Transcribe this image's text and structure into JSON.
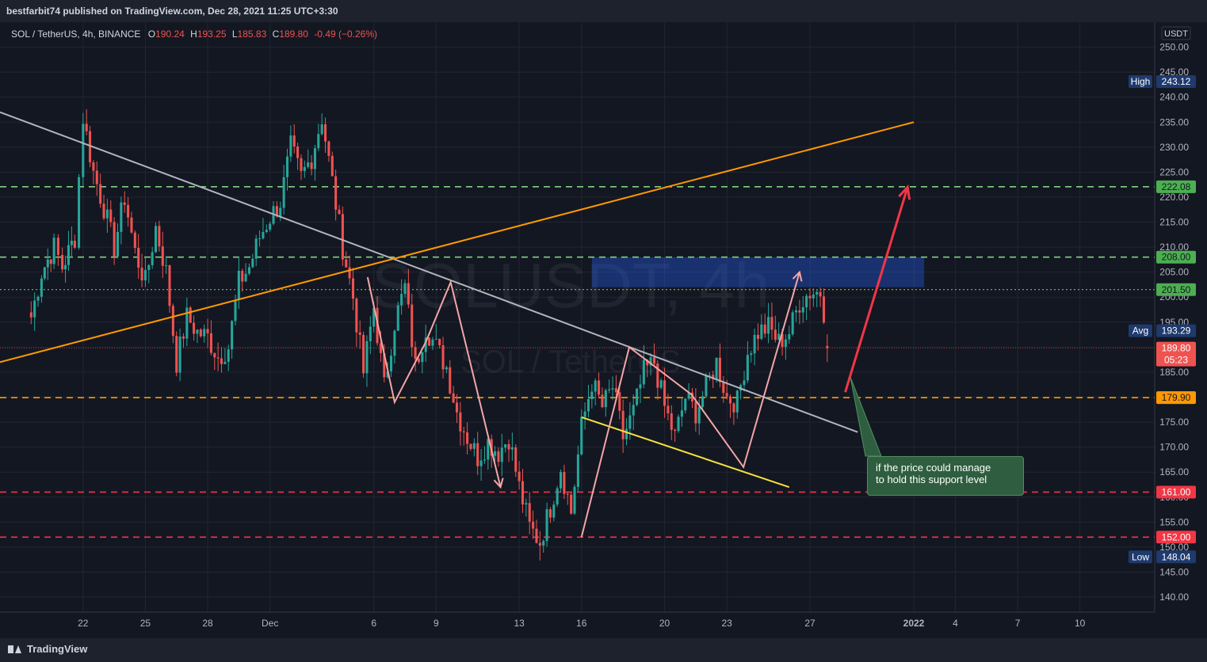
{
  "publisher": "bestfarbit74 published on TradingView.com, Dec 28, 2021 11:25 UTC+3:30",
  "brand": "TradingView",
  "legend": {
    "symbol": "SOL / TetherUS, 4h, BINANCE",
    "o_label": "O",
    "o": "190.24",
    "h_label": "H",
    "h": "193.25",
    "l_label": "L",
    "l": "185.83",
    "c_label": "C",
    "c": "189.80",
    "change": "-0.49 (−0.26%)"
  },
  "watermark": {
    "line1": "SOLUSDT, 4h",
    "line2": "SOL / TetherUS"
  },
  "currency": "USDT",
  "colors": {
    "background": "#131722",
    "up": "#26a69a",
    "down": "#ef5350",
    "grid": "#222631",
    "trendline_white": "#b2b5be",
    "trendline_orange": "#ff9800",
    "trendline_yellow": "#f7e23c",
    "zigzag_pink": "#f4a6a6",
    "arrow_red": "#f23645",
    "zone_blue": "#2962ff",
    "level_green": "#7fd37f",
    "level_orange": "#ff9800",
    "level_red": "#f23645",
    "note_bg": "#2e5e3f"
  },
  "annotation": {
    "line1": "if the price could manage",
    "line2": "to hold this support level"
  },
  "chart_data": {
    "type": "candlestick",
    "symbol": "SOL / TetherUS",
    "interval": "4h",
    "exchange": "BINANCE",
    "ylim": [
      137,
      255
    ],
    "y_ticks": [
      140,
      145,
      150,
      155,
      160,
      165,
      170,
      175,
      180,
      185,
      190,
      195,
      200,
      205,
      210,
      215,
      220,
      225,
      230,
      235,
      240,
      245,
      250
    ],
    "y_tick_labels": [
      "140.00",
      "145.00",
      "150.00",
      "155.00",
      "160.00",
      "165.00",
      "170.00",
      "175.00",
      "180.00",
      "185.00",
      "190.00",
      "195.00",
      "200.00",
      "205.00",
      "210.00",
      "215.00",
      "220.00",
      "225.00",
      "230.00",
      "235.00",
      "240.00",
      "245.00",
      "250.00"
    ],
    "x_ticks": [
      {
        "label": "22",
        "x": 22
      },
      {
        "label": "25",
        "x": 25
      },
      {
        "label": "28",
        "x": 28
      },
      {
        "label": "Dec",
        "x": 31
      },
      {
        "label": "6",
        "x": 36
      },
      {
        "label": "9",
        "x": 39
      },
      {
        "label": "13",
        "x": 43
      },
      {
        "label": "16",
        "x": 46
      },
      {
        "label": "20",
        "x": 50
      },
      {
        "label": "23",
        "x": 53
      },
      {
        "label": "27",
        "x": 57
      },
      {
        "label": "2022",
        "x": 62
      },
      {
        "label": "4",
        "x": 64
      },
      {
        "label": "7",
        "x": 67
      },
      {
        "label": "10",
        "x": 70
      }
    ],
    "x_unit": "day index (Nov 1 = 1)",
    "anchors": [
      [
        19.5,
        196
      ],
      [
        20,
        205
      ],
      [
        20.6,
        210
      ],
      [
        21,
        206
      ],
      [
        21.6,
        212
      ],
      [
        22,
        236
      ],
      [
        22.5,
        225
      ],
      [
        23,
        218
      ],
      [
        23.5,
        210
      ],
      [
        24,
        220
      ],
      [
        24.5,
        209
      ],
      [
        25,
        203
      ],
      [
        25.5,
        214
      ],
      [
        26,
        205
      ],
      [
        26.5,
        187
      ],
      [
        27,
        196
      ],
      [
        27.5,
        193
      ],
      [
        28,
        192
      ],
      [
        28.5,
        188
      ],
      [
        29,
        190
      ],
      [
        29.5,
        203
      ],
      [
        30,
        206
      ],
      [
        30.5,
        212
      ],
      [
        31,
        216
      ],
      [
        31.5,
        219
      ],
      [
        32,
        230
      ],
      [
        32.5,
        224
      ],
      [
        33,
        228
      ],
      [
        33.5,
        236
      ],
      [
        34,
        223
      ],
      [
        34.5,
        210
      ],
      [
        35,
        200
      ],
      [
        35.5,
        185
      ],
      [
        36,
        198
      ],
      [
        36.5,
        182
      ],
      [
        37,
        195
      ],
      [
        37.5,
        202
      ],
      [
        38,
        186
      ],
      [
        38.5,
        194
      ],
      [
        39,
        190
      ],
      [
        39.5,
        186
      ],
      [
        40,
        177
      ],
      [
        40.5,
        172
      ],
      [
        41,
        168
      ],
      [
        41.5,
        171
      ],
      [
        42,
        169
      ],
      [
        42.5,
        172
      ],
      [
        43,
        162
      ],
      [
        43.5,
        154
      ],
      [
        44,
        151
      ],
      [
        44.5,
        158
      ],
      [
        45,
        166
      ],
      [
        45.5,
        157
      ],
      [
        46,
        174
      ],
      [
        46.5,
        183
      ],
      [
        47,
        178
      ],
      [
        47.5,
        182
      ],
      [
        48,
        172
      ],
      [
        48.5,
        177
      ],
      [
        49,
        185
      ],
      [
        49.5,
        187
      ],
      [
        50,
        178
      ],
      [
        50.5,
        172
      ],
      [
        51,
        180
      ],
      [
        51.5,
        177
      ],
      [
        52,
        182
      ],
      [
        52.5,
        187
      ],
      [
        53,
        180
      ],
      [
        53.5,
        179
      ],
      [
        54,
        189
      ],
      [
        54.5,
        193
      ],
      [
        55,
        194
      ],
      [
        55.5,
        191
      ],
      [
        56,
        193
      ],
      [
        56.5,
        199
      ],
      [
        57,
        201
      ],
      [
        57.5,
        201
      ],
      [
        58,
        189.8
      ]
    ],
    "last_candle": {
      "open": 190.24,
      "high": 193.25,
      "low": 185.83,
      "close": 189.8
    },
    "horizontal_levels": [
      {
        "price": 222.08,
        "label": "222.08",
        "color": "green",
        "style": "dashed"
      },
      {
        "price": 208.0,
        "label": "208.00",
        "color": "green",
        "style": "dashed"
      },
      {
        "price": 201.5,
        "label": "201.50",
        "color": "green",
        "style": "dotted"
      },
      {
        "price": 179.9,
        "label": "179.90",
        "color": "orange",
        "style": "dashed"
      },
      {
        "price": 161.0,
        "label": "161.00",
        "color": "red",
        "style": "dashed"
      },
      {
        "price": 152.0,
        "label": "152.00",
        "color": "red",
        "style": "dashed"
      }
    ],
    "price_labels": {
      "high_label": "High",
      "high": "243.12",
      "avg_label": "Avg",
      "avg": "193.29",
      "low_label": "Low",
      "low": "148.04",
      "last": "189.80",
      "countdown": "05:23"
    },
    "zone": {
      "x1": 46.5,
      "x2": 62.5,
      "y1": 202,
      "y2": 208
    },
    "trendlines": [
      {
        "name": "white-descending",
        "x1": 18,
        "y1": 237,
        "x2": 59.3,
        "y2": 173
      },
      {
        "name": "orange-ascending",
        "x1": 18,
        "y1": 187,
        "x2": 62,
        "y2": 235
      },
      {
        "name": "yellow-support",
        "x1": 46,
        "y1": 176,
        "x2": 56,
        "y2": 162
      }
    ],
    "zigzags": [
      [
        [
          35.7,
          204
        ],
        [
          37,
          179
        ],
        [
          38.5,
          191
        ],
        [
          39.7,
          203
        ],
        [
          42.1,
          162
        ]
      ],
      [
        [
          46,
          152
        ],
        [
          48.3,
          190
        ],
        [
          51.3,
          180.5
        ],
        [
          53.8,
          166
        ],
        [
          56.5,
          205
        ]
      ]
    ],
    "arrow": {
      "x1": 58.7,
      "y1": 181,
      "x2": 61.7,
      "y2": 222
    },
    "grid": true
  }
}
